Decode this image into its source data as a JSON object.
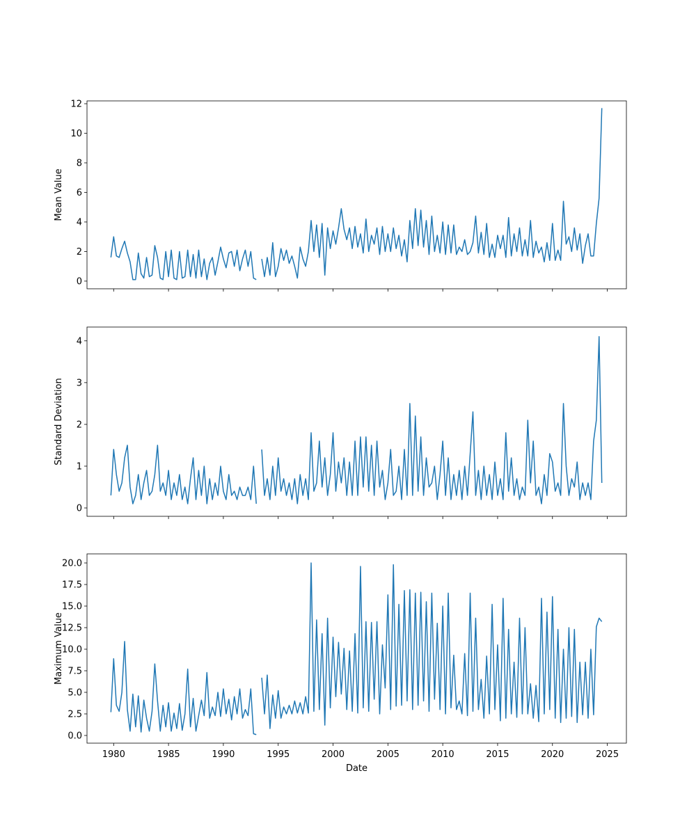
{
  "chart_data": [
    {
      "type": "line",
      "ylabel": "Mean Value",
      "color": "#1f77b4",
      "x": [
        1979.75,
        1980,
        1980.25,
        1980.5,
        1980.75,
        1981,
        1981.25,
        1981.5,
        1981.75,
        1982,
        1982.25,
        1982.5,
        1982.75,
        1983,
        1983.25,
        1983.5,
        1983.75,
        1984,
        1984.25,
        1984.5,
        1984.75,
        1985,
        1985.25,
        1985.5,
        1985.75,
        1986,
        1986.25,
        1986.5,
        1986.75,
        1987,
        1987.25,
        1987.5,
        1987.75,
        1988,
        1988.25,
        1988.5,
        1988.75,
        1989,
        1989.25,
        1989.5,
        1989.75,
        1990,
        1990.25,
        1990.5,
        1990.75,
        1991,
        1991.25,
        1991.5,
        1991.75,
        1992,
        1992.25,
        1992.5,
        1992.75,
        1993,
        1993.25,
        1993.5,
        1993.75,
        1994,
        1994.25,
        1994.5,
        1994.75,
        1995,
        1995.25,
        1995.5,
        1995.75,
        1996,
        1996.25,
        1996.5,
        1996.75,
        1997,
        1997.25,
        1997.5,
        1997.75,
        1998,
        1998.25,
        1998.5,
        1998.75,
        1999,
        1999.25,
        1999.5,
        1999.75,
        2000,
        2000.25,
        2000.5,
        2000.75,
        2001,
        2001.25,
        2001.5,
        2001.75,
        2002,
        2002.25,
        2002.5,
        2002.75,
        2003,
        2003.25,
        2003.5,
        2003.75,
        2004,
        2004.25,
        2004.5,
        2004.75,
        2005,
        2005.25,
        2005.5,
        2005.75,
        2006,
        2006.25,
        2006.5,
        2006.75,
        2007,
        2007.25,
        2007.5,
        2007.75,
        2008,
        2008.25,
        2008.5,
        2008.75,
        2009,
        2009.25,
        2009.5,
        2009.75,
        2010,
        2010.25,
        2010.5,
        2010.75,
        2011,
        2011.25,
        2011.5,
        2011.75,
        2012,
        2012.25,
        2012.5,
        2012.75,
        2013,
        2013.25,
        2013.5,
        2013.75,
        2014,
        2014.25,
        2014.5,
        2014.75,
        2015,
        2015.25,
        2015.5,
        2015.75,
        2016,
        2016.25,
        2016.5,
        2016.75,
        2017,
        2017.25,
        2017.5,
        2017.75,
        2018,
        2018.25,
        2018.5,
        2018.75,
        2019,
        2019.25,
        2019.5,
        2019.75,
        2020,
        2020.25,
        2020.5,
        2020.75,
        2021,
        2021.25,
        2021.5,
        2021.75,
        2022,
        2022.25,
        2022.5,
        2022.75,
        2023,
        2023.25,
        2023.5,
        2023.75,
        2024,
        2024.25,
        2024.5
      ],
      "values": [
        1.6,
        3.0,
        1.7,
        1.6,
        2.2,
        2.7,
        1.9,
        1.3,
        0.1,
        0.1,
        1.9,
        0.5,
        0.2,
        1.6,
        0.3,
        0.4,
        2.4,
        1.6,
        0.2,
        0.1,
        2.0,
        0.3,
        2.1,
        0.2,
        0.1,
        2.0,
        0.2,
        0.3,
        2.1,
        0.3,
        1.8,
        0.2,
        2.1,
        0.3,
        1.5,
        0.1,
        1.2,
        1.6,
        0.4,
        1.3,
        2.3,
        1.5,
        0.9,
        1.9,
        2.0,
        1.0,
        2.1,
        0.7,
        1.5,
        2.1,
        1.0,
        2.0,
        0.2,
        0.1,
        null,
        1.5,
        0.3,
        1.6,
        0.4,
        2.6,
        0.3,
        1.0,
        2.2,
        1.4,
        2.1,
        1.2,
        1.7,
        1.0,
        0.2,
        2.3,
        1.5,
        1.0,
        2.0,
        4.1,
        2.0,
        3.8,
        1.6,
        3.9,
        0.4,
        3.6,
        2.2,
        3.4,
        2.5,
        3.6,
        4.9,
        3.5,
        2.8,
        3.6,
        2.2,
        3.7,
        2.3,
        3.2,
        1.9,
        4.2,
        2.0,
        3.1,
        2.5,
        3.6,
        1.8,
        3.7,
        2.0,
        3.2,
        2.0,
        3.6,
        2.2,
        3.1,
        1.7,
        2.8,
        1.3,
        4.1,
        2.2,
        4.9,
        2.4,
        4.8,
        2.3,
        4.1,
        1.8,
        4.4,
        2.0,
        3.1,
        1.9,
        4.0,
        1.8,
        3.8,
        1.9,
        3.8,
        1.8,
        2.3,
        2.0,
        2.8,
        1.8,
        2.0,
        2.6,
        4.4,
        1.9,
        3.3,
        1.8,
        3.9,
        1.6,
        2.5,
        1.6,
        3.1,
        2.2,
        3.1,
        1.6,
        4.3,
        1.7,
        3.2,
        2.0,
        3.6,
        1.7,
        2.8,
        1.7,
        4.1,
        1.6,
        2.7,
        1.9,
        2.3,
        1.3,
        2.6,
        1.4,
        3.9,
        1.4,
        2.1,
        1.4,
        5.4,
        2.5,
        3.0,
        2.0,
        3.6,
        2.1,
        3.2,
        1.2,
        2.4,
        3.2,
        1.7,
        1.7,
        3.9,
        5.6,
        11.7
      ],
      "xlim": [
        1977.57,
        2026.74
      ],
      "xticks": [
        1980,
        1985,
        1990,
        1995,
        2000,
        2005,
        2010,
        2015,
        2020,
        2025
      ],
      "ylim": [
        -0.52,
        12.19
      ],
      "yticks": [
        0,
        2,
        4,
        6,
        8,
        10,
        12
      ]
    },
    {
      "type": "line",
      "ylabel": "Standard Deviation",
      "color": "#1f77b4",
      "x": [
        1979.75,
        1980,
        1980.25,
        1980.5,
        1980.75,
        1981,
        1981.25,
        1981.5,
        1981.75,
        1982,
        1982.25,
        1982.5,
        1982.75,
        1983,
        1983.25,
        1983.5,
        1983.75,
        1984,
        1984.25,
        1984.5,
        1984.75,
        1985,
        1985.25,
        1985.5,
        1985.75,
        1986,
        1986.25,
        1986.5,
        1986.75,
        1987,
        1987.25,
        1987.5,
        1987.75,
        1988,
        1988.25,
        1988.5,
        1988.75,
        1989,
        1989.25,
        1989.5,
        1989.75,
        1990,
        1990.25,
        1990.5,
        1990.75,
        1991,
        1991.25,
        1991.5,
        1991.75,
        1992,
        1992.25,
        1992.5,
        1992.75,
        1993,
        1993.25,
        1993.5,
        1993.75,
        1994,
        1994.25,
        1994.5,
        1994.75,
        1995,
        1995.25,
        1995.5,
        1995.75,
        1996,
        1996.25,
        1996.5,
        1996.75,
        1997,
        1997.25,
        1997.5,
        1997.75,
        1998,
        1998.25,
        1998.5,
        1998.75,
        1999,
        1999.25,
        1999.5,
        1999.75,
        2000,
        2000.25,
        2000.5,
        2000.75,
        2001,
        2001.25,
        2001.5,
        2001.75,
        2002,
        2002.25,
        2002.5,
        2002.75,
        2003,
        2003.25,
        2003.5,
        2003.75,
        2004,
        2004.25,
        2004.5,
        2004.75,
        2005,
        2005.25,
        2005.5,
        2005.75,
        2006,
        2006.25,
        2006.5,
        2006.75,
        2007,
        2007.25,
        2007.5,
        2007.75,
        2008,
        2008.25,
        2008.5,
        2008.75,
        2009,
        2009.25,
        2009.5,
        2009.75,
        2010,
        2010.25,
        2010.5,
        2010.75,
        2011,
        2011.25,
        2011.5,
        2011.75,
        2012,
        2012.25,
        2012.5,
        2012.75,
        2013,
        2013.25,
        2013.5,
        2013.75,
        2014,
        2014.25,
        2014.5,
        2014.75,
        2015,
        2015.25,
        2015.5,
        2015.75,
        2016,
        2016.25,
        2016.5,
        2016.75,
        2017,
        2017.25,
        2017.5,
        2017.75,
        2018,
        2018.25,
        2018.5,
        2018.75,
        2019,
        2019.25,
        2019.5,
        2019.75,
        2020,
        2020.25,
        2020.5,
        2020.75,
        2021,
        2021.25,
        2021.5,
        2021.75,
        2022,
        2022.25,
        2022.5,
        2022.75,
        2023,
        2023.25,
        2023.5,
        2023.75,
        2024,
        2024.25,
        2024.5
      ],
      "values": [
        0.3,
        1.4,
        0.8,
        0.4,
        0.6,
        1.2,
        1.5,
        0.5,
        0.1,
        0.3,
        0.8,
        0.2,
        0.6,
        0.9,
        0.3,
        0.4,
        0.8,
        1.5,
        0.4,
        0.6,
        0.3,
        0.9,
        0.2,
        0.6,
        0.3,
        0.8,
        0.2,
        0.5,
        0.1,
        0.7,
        1.2,
        0.2,
        0.9,
        0.3,
        1.0,
        0.1,
        0.7,
        0.2,
        0.6,
        0.3,
        1.0,
        0.4,
        0.2,
        0.8,
        0.3,
        0.4,
        0.2,
        0.5,
        0.3,
        0.3,
        0.5,
        0.2,
        1.0,
        0.1,
        null,
        1.4,
        0.3,
        0.7,
        0.2,
        1.0,
        0.3,
        1.2,
        0.4,
        0.7,
        0.3,
        0.6,
        0.2,
        0.7,
        0.1,
        0.8,
        0.3,
        0.7,
        0.2,
        1.8,
        0.4,
        0.6,
        1.6,
        0.5,
        1.2,
        0.3,
        0.8,
        1.8,
        0.4,
        1.1,
        0.6,
        1.2,
        0.3,
        1.1,
        0.3,
        1.6,
        0.3,
        1.7,
        0.5,
        1.7,
        0.4,
        1.5,
        0.3,
        1.6,
        0.5,
        0.9,
        0.2,
        0.6,
        1.4,
        0.3,
        0.4,
        1.0,
        0.2,
        1.4,
        0.3,
        2.5,
        0.3,
        2.2,
        0.4,
        1.7,
        0.3,
        1.2,
        0.5,
        0.6,
        1.0,
        0.2,
        0.8,
        1.6,
        0.3,
        1.2,
        0.2,
        0.8,
        0.3,
        0.9,
        0.2,
        1.0,
        0.3,
        1.3,
        2.3,
        0.3,
        0.9,
        0.2,
        1.0,
        0.3,
        0.8,
        0.2,
        1.1,
        0.3,
        0.7,
        0.2,
        1.8,
        0.4,
        1.2,
        0.3,
        0.7,
        0.2,
        0.5,
        0.3,
        2.1,
        0.6,
        1.6,
        0.3,
        0.5,
        0.1,
        0.8,
        0.3,
        1.3,
        1.1,
        0.4,
        0.6,
        0.3,
        2.5,
        1.0,
        0.3,
        0.7,
        0.5,
        1.1,
        0.2,
        0.6,
        0.3,
        0.6,
        0.2,
        1.6,
        2.1,
        4.1,
        0.6
      ],
      "xlim": [
        1977.57,
        2026.74
      ],
      "xticks": [
        1980,
        1985,
        1990,
        1995,
        2000,
        2005,
        2010,
        2015,
        2020,
        2025
      ],
      "ylim": [
        -0.2,
        4.33
      ],
      "yticks": [
        0,
        1,
        2,
        3,
        4
      ]
    },
    {
      "type": "line",
      "ylabel": "Maximum Value",
      "xlabel": "Date",
      "color": "#1f77b4",
      "x": [
        1979.75,
        1980,
        1980.25,
        1980.5,
        1980.75,
        1981,
        1981.25,
        1981.5,
        1981.75,
        1982,
        1982.25,
        1982.5,
        1982.75,
        1983,
        1983.25,
        1983.5,
        1983.75,
        1984,
        1984.25,
        1984.5,
        1984.75,
        1985,
        1985.25,
        1985.5,
        1985.75,
        1986,
        1986.25,
        1986.5,
        1986.75,
        1987,
        1987.25,
        1987.5,
        1987.75,
        1988,
        1988.25,
        1988.5,
        1988.75,
        1989,
        1989.25,
        1989.5,
        1989.75,
        1990,
        1990.25,
        1990.5,
        1990.75,
        1991,
        1991.25,
        1991.5,
        1991.75,
        1992,
        1992.25,
        1992.5,
        1992.75,
        1993,
        1993.25,
        1993.5,
        1993.75,
        1994,
        1994.25,
        1994.5,
        1994.75,
        1995,
        1995.25,
        1995.5,
        1995.75,
        1996,
        1996.25,
        1996.5,
        1996.75,
        1997,
        1997.25,
        1997.5,
        1997.75,
        1998,
        1998.25,
        1998.5,
        1998.75,
        1999,
        1999.25,
        1999.5,
        1999.75,
        2000,
        2000.25,
        2000.5,
        2000.75,
        2001,
        2001.25,
        2001.5,
        2001.75,
        2002,
        2002.25,
        2002.5,
        2002.75,
        2003,
        2003.25,
        2003.5,
        2003.75,
        2004,
        2004.25,
        2004.5,
        2004.75,
        2005,
        2005.25,
        2005.5,
        2005.75,
        2006,
        2006.25,
        2006.5,
        2006.75,
        2007,
        2007.25,
        2007.5,
        2007.75,
        2008,
        2008.25,
        2008.5,
        2008.75,
        2009,
        2009.25,
        2009.5,
        2009.75,
        2010,
        2010.25,
        2010.5,
        2010.75,
        2011,
        2011.25,
        2011.5,
        2011.75,
        2012,
        2012.25,
        2012.5,
        2012.75,
        2013,
        2013.25,
        2013.5,
        2013.75,
        2014,
        2014.25,
        2014.5,
        2014.75,
        2015,
        2015.25,
        2015.5,
        2015.75,
        2016,
        2016.25,
        2016.5,
        2016.75,
        2017,
        2017.25,
        2017.5,
        2017.75,
        2018,
        2018.25,
        2018.5,
        2018.75,
        2019,
        2019.25,
        2019.5,
        2019.75,
        2020,
        2020.25,
        2020.5,
        2020.75,
        2021,
        2021.25,
        2021.5,
        2021.75,
        2022,
        2022.25,
        2022.5,
        2022.75,
        2023,
        2023.25,
        2023.5,
        2023.75,
        2024,
        2024.25,
        2024.5
      ],
      "values": [
        2.7,
        8.9,
        3.5,
        2.8,
        5.0,
        10.9,
        3.0,
        0.5,
        4.8,
        1.0,
        4.6,
        0.4,
        4.1,
        2.0,
        0.5,
        2.8,
        8.3,
        4.0,
        0.5,
        3.5,
        1.0,
        3.8,
        0.5,
        2.6,
        0.8,
        3.7,
        0.6,
        2.5,
        7.7,
        1.0,
        4.3,
        0.5,
        2.3,
        4.1,
        2.3,
        7.3,
        2.0,
        3.3,
        2.3,
        5.0,
        2.2,
        5.4,
        2.5,
        4.2,
        1.8,
        4.5,
        2.5,
        5.4,
        2.0,
        3.0,
        2.3,
        5.4,
        0.2,
        0.1,
        null,
        6.7,
        2.5,
        7.0,
        0.8,
        4.7,
        2.0,
        5.2,
        2.0,
        3.3,
        2.5,
        3.5,
        2.5,
        4.0,
        2.6,
        3.8,
        2.5,
        4.5,
        2.6,
        20.0,
        2.8,
        13.4,
        3.0,
        11.8,
        1.2,
        13.6,
        3.2,
        11.4,
        4.5,
        10.8,
        4.8,
        10.1,
        3.0,
        9.8,
        2.8,
        11.8,
        2.6,
        19.6,
        3.2,
        13.2,
        2.8,
        13.1,
        4.2,
        13.2,
        2.5,
        10.5,
        5.5,
        16.3,
        3.0,
        19.8,
        3.4,
        15.2,
        3.5,
        16.8,
        4.0,
        16.9,
        3.0,
        16.5,
        3.5,
        16.6,
        4.0,
        15.5,
        2.8,
        16.5,
        4.2,
        13.0,
        3.0,
        15.0,
        2.5,
        16.5,
        3.2,
        9.3,
        3.0,
        4.0,
        2.5,
        9.5,
        2.3,
        16.5,
        2.8,
        13.6,
        3.0,
        6.5,
        2.0,
        9.2,
        2.5,
        15.2,
        3.0,
        10.5,
        1.7,
        15.9,
        2.0,
        12.3,
        2.5,
        8.5,
        2.1,
        13.6,
        2.5,
        12.5,
        2.5,
        6.0,
        2.0,
        5.8,
        1.6,
        15.9,
        2.5,
        14.3,
        3.0,
        16.1,
        2.0,
        12.3,
        1.5,
        10.0,
        2.0,
        12.5,
        2.2,
        12.3,
        1.5,
        8.5,
        2.4,
        8.5,
        2.0,
        10.0,
        2.4,
        12.6,
        13.6,
        13.2
      ],
      "xlim": [
        1977.57,
        2026.74
      ],
      "xticks": [
        1980,
        1985,
        1990,
        1995,
        2000,
        2005,
        2010,
        2015,
        2020,
        2025
      ],
      "ylim": [
        -0.89,
        21.05
      ],
      "yticks": [
        {
          "value": 0,
          "label": "0.0"
        },
        {
          "value": 2.5,
          "label": "2.5"
        },
        {
          "value": 5,
          "label": "5.0"
        },
        {
          "value": 7.5,
          "label": "7.5"
        },
        {
          "value": 10,
          "label": "10.0"
        },
        {
          "value": 12.5,
          "label": "12.5"
        },
        {
          "value": 15,
          "label": "15.0"
        },
        {
          "value": 17.5,
          "label": "17.5"
        },
        {
          "value": 20,
          "label": "20.0"
        }
      ]
    }
  ]
}
